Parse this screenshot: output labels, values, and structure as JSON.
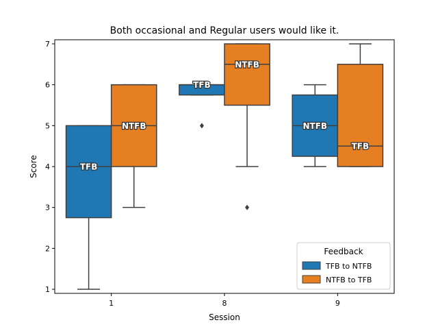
{
  "chart_data": {
    "type": "box",
    "title": "Both occasional and Regular users would like it.",
    "xlabel": "Session",
    "ylabel": "Score",
    "categories": [
      "1",
      "8",
      "9"
    ],
    "ylim": [
      0.9,
      7.1
    ],
    "yticks": [
      1,
      2,
      3,
      4,
      5,
      6,
      7
    ],
    "grid": false,
    "legend": {
      "title": "Feedback",
      "placement": "lower-right"
    },
    "series": [
      {
        "name": "TFB to NTFB",
        "color": "#1f77b4",
        "boxes": [
          {
            "category": "1",
            "q1": 2.75,
            "median": 4.0,
            "q3": 5.0,
            "whisker_low": 1.0,
            "whisker_high": 5.0,
            "outliers": [],
            "label": "TFB"
          },
          {
            "category": "8",
            "q1": 5.75,
            "median": 6.0,
            "q3": 6.0,
            "whisker_low": 5.75,
            "whisker_high": 6.0,
            "outliers": [
              5.0
            ],
            "label": "TFB"
          },
          {
            "category": "9",
            "q1": 4.25,
            "median": 5.0,
            "q3": 5.75,
            "whisker_low": 4.0,
            "whisker_high": 6.0,
            "outliers": [],
            "label": "NTFB"
          }
        ]
      },
      {
        "name": "NTFB to TFB",
        "color": "#e67e22",
        "boxes": [
          {
            "category": "1",
            "q1": 4.0,
            "median": 5.0,
            "q3": 6.0,
            "whisker_low": 3.0,
            "whisker_high": 6.0,
            "outliers": [],
            "label": "NTFB"
          },
          {
            "category": "8",
            "q1": 5.5,
            "median": 6.5,
            "q3": 7.0,
            "whisker_low": 4.0,
            "whisker_high": 7.0,
            "outliers": [
              3.0
            ],
            "label": "NTFB"
          },
          {
            "category": "9",
            "q1": 4.0,
            "median": 4.5,
            "q3": 6.5,
            "whisker_low": 4.0,
            "whisker_high": 7.0,
            "outliers": [],
            "label": "TFB"
          }
        ]
      }
    ]
  }
}
